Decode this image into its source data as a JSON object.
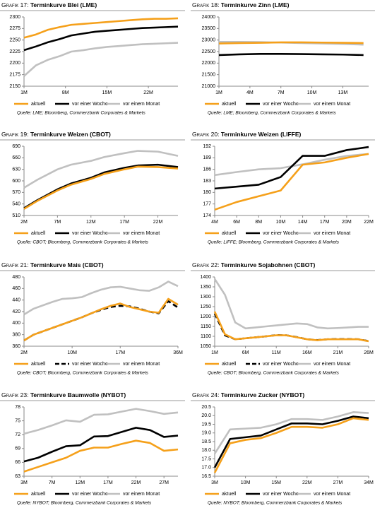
{
  "chart_data": [
    {
      "type": "line",
      "title_prefix": "Grafik 17:",
      "title": "Terminkurve Blei (LME)",
      "x": [
        1,
        3,
        5,
        7,
        9,
        11,
        13,
        15,
        17,
        19,
        21,
        23,
        25,
        27
      ],
      "xlim": [
        1,
        27
      ],
      "xticks": [
        {
          "value": 1,
          "label": "1M"
        },
        {
          "value": 8,
          "label": "8M"
        },
        {
          "value": 15,
          "label": "15M"
        },
        {
          "value": 22,
          "label": "22M"
        }
      ],
      "ylim": [
        2150,
        2300
      ],
      "yticks": [
        2150,
        2175,
        2200,
        2225,
        2250,
        2275,
        2300
      ],
      "series": [
        {
          "name": "aktuell",
          "color": "#f5a01a",
          "values": [
            2255,
            2262,
            2272,
            2278,
            2283,
            2285,
            2287,
            2289,
            2291,
            2293,
            2295,
            2296,
            2296,
            2297
          ]
        },
        {
          "name": "vor einer Woche",
          "color": "#000000",
          "values": [
            2228,
            2236,
            2245,
            2252,
            2260,
            2264,
            2268,
            2270,
            2272,
            2274,
            2276,
            2277,
            2278,
            2279
          ]
        },
        {
          "name": "vor einem Monat",
          "color": "#c0c0c0",
          "values": [
            2172,
            2195,
            2207,
            2215,
            2225,
            2228,
            2232,
            2235,
            2237,
            2239,
            2241,
            2242,
            2243,
            2244
          ]
        }
      ],
      "source": "Quelle: LME; Bloomberg, Commerzbank Corporates & Markets"
    },
    {
      "type": "line",
      "title_prefix": "Grafik 18:",
      "title": "Terminkurve Zinn (LME)",
      "x": [
        1,
        3,
        5,
        7,
        9,
        11,
        13,
        15
      ],
      "xlim": [
        1,
        15.5
      ],
      "xticks": [
        {
          "value": 1,
          "label": "1M"
        },
        {
          "value": 4,
          "label": "4M"
        },
        {
          "value": 7,
          "label": "7M"
        },
        {
          "value": 10,
          "label": "10M"
        },
        {
          "value": 13,
          "label": "13M"
        }
      ],
      "ylim": [
        21000,
        24000
      ],
      "yticks": [
        21000,
        21500,
        22000,
        22500,
        23000,
        23500,
        24000
      ],
      "series": [
        {
          "name": "aktuell",
          "color": "#f5a01a",
          "values": [
            22850,
            22870,
            22880,
            22900,
            22900,
            22890,
            22880,
            22870
          ]
        },
        {
          "name": "vor einer Woche",
          "color": "#000000",
          "values": [
            22350,
            22380,
            22400,
            22400,
            22390,
            22380,
            22370,
            22350
          ]
        },
        {
          "name": "vor einem Monat",
          "color": "#c0c0c0",
          "values": [
            22920,
            22920,
            22910,
            22890,
            22870,
            22850,
            22830,
            22800
          ]
        }
      ],
      "source": "Quelle: LME; Bloomberg, Commerzbank Corporates & Markets"
    },
    {
      "type": "line",
      "title_prefix": "Grafik 19:",
      "title": "Terminkurve Weizen (CBOT)",
      "x": [
        2,
        4,
        7,
        9,
        12,
        14,
        17,
        19,
        22,
        25
      ],
      "xlim": [
        2,
        25
      ],
      "xticks": [
        {
          "value": 2,
          "label": "2M"
        },
        {
          "value": 7,
          "label": "7M"
        },
        {
          "value": 12,
          "label": "12M"
        },
        {
          "value": 17,
          "label": "17M"
        },
        {
          "value": 22,
          "label": "22M"
        }
      ],
      "ylim": [
        510,
        690
      ],
      "yticks": [
        510,
        540,
        570,
        600,
        630,
        660,
        690
      ],
      "series": [
        {
          "name": "aktuell",
          "color": "#f5a01a",
          "values": [
            527,
            548,
            575,
            590,
            605,
            618,
            630,
            637,
            636,
            632
          ]
        },
        {
          "name": "vor einer Woche",
          "color": "#000000",
          "values": [
            529,
            550,
            578,
            593,
            608,
            622,
            634,
            640,
            642,
            636
          ]
        },
        {
          "name": "vor einem Monat",
          "color": "#c0c0c0",
          "values": [
            582,
            603,
            630,
            642,
            652,
            662,
            672,
            678,
            676,
            665
          ]
        }
      ],
      "source": "Quelle: CBOT; Bloomberg, Commerzbank Corporates & Markets"
    },
    {
      "type": "line",
      "title_prefix": "Grafik 20:",
      "title": "Terminkurve Weizen (LIFFE)",
      "categories": [
        "4M",
        "6M",
        "8M",
        "10M",
        "14M",
        "17M",
        "20M",
        "22M"
      ],
      "ylim": [
        174,
        192
      ],
      "yticks": [
        174,
        177,
        180,
        183,
        186,
        189,
        192
      ],
      "series": [
        {
          "name": "aktuell",
          "color": "#f5a01a",
          "values": [
            175.5,
            177.5,
            179,
            180.5,
            187.2,
            187.8,
            189,
            190
          ]
        },
        {
          "name": "vor einer Woche",
          "color": "#000000",
          "values": [
            181,
            181.5,
            182,
            184,
            189.5,
            189.5,
            191,
            191.8
          ]
        },
        {
          "name": "vor einem Monat",
          "color": "#c0c0c0",
          "values": [
            184.5,
            185.3,
            186,
            186.3,
            187.3,
            188.5,
            189.5,
            190
          ]
        }
      ],
      "source": "Quelle: LIFFE; Bloomberg, Commerzbank Corporates & Markets"
    },
    {
      "type": "line",
      "title_prefix": "Grafik 21:",
      "title": "Terminkurve Mais (CBOT)",
      "categories": [
        "2M",
        null,
        null,
        null,
        null,
        "10M",
        null,
        null,
        null,
        null,
        "17M",
        null,
        null,
        null,
        null,
        null,
        "36M"
      ],
      "ylim": [
        360,
        480
      ],
      "yticks": [
        360,
        380,
        400,
        420,
        440,
        460,
        480
      ],
      "series": [
        {
          "name": "aktuell",
          "color": "#f5a01a",
          "values": [
            370,
            380,
            386,
            392,
            398,
            404,
            410,
            417,
            424,
            430,
            434,
            428,
            424,
            420,
            418,
            442,
            432
          ]
        },
        {
          "name": "vor einer Woche",
          "color": "#000000",
          "dash": true,
          "values": [
            370,
            380,
            386,
            392,
            398,
            404,
            410,
            417,
            423,
            428,
            430,
            429,
            425,
            420,
            417,
            438,
            427
          ]
        },
        {
          "name": "vor einem Monat",
          "color": "#c0c0c0",
          "values": [
            415,
            425,
            431,
            437,
            442,
            443,
            445,
            452,
            458,
            462,
            463,
            460,
            457,
            456,
            462,
            472,
            464
          ]
        }
      ],
      "source": "Quelle: CBOT; Bloomberg, Commerzbank Corporates & Markets"
    },
    {
      "type": "line",
      "title_prefix": "Grafik 22:",
      "title": "Terminkurve Sojabohnen (CBOT)",
      "categories": [
        "1M",
        null,
        null,
        "6M",
        null,
        null,
        "11M",
        null,
        null,
        "16M",
        null,
        null,
        "21M",
        null,
        null,
        "26M"
      ],
      "ylim": [
        1050,
        1400
      ],
      "yticks": [
        1050,
        1100,
        1150,
        1200,
        1250,
        1300,
        1350,
        1400
      ],
      "series": [
        {
          "name": "aktuell",
          "color": "#f5a01a",
          "values": [
            1225,
            1110,
            1085,
            1090,
            1095,
            1100,
            1105,
            1105,
            1095,
            1085,
            1080,
            1085,
            1085,
            1085,
            1085,
            1075
          ]
        },
        {
          "name": "vor einer Woche",
          "color": "#000000",
          "dash": true,
          "values": [
            1215,
            1105,
            1085,
            1090,
            1095,
            1100,
            1106,
            1105,
            1096,
            1085,
            1081,
            1085,
            1086,
            1086,
            1085,
            1076
          ]
        },
        {
          "name": "vor einem Monat",
          "color": "#c0c0c0",
          "values": [
            1390,
            1310,
            1170,
            1140,
            1145,
            1150,
            1155,
            1160,
            1165,
            1162,
            1145,
            1140,
            1142,
            1145,
            1148,
            1148
          ]
        }
      ],
      "source": "Quelle: CBOT; Bloomberg, Commerzbank Corporates & Markets"
    },
    {
      "type": "line",
      "title_prefix": "Grafik 23:",
      "title": "Terminkurve Baumwolle (NYBOT)",
      "categories": [
        "3M",
        null,
        "7M",
        null,
        "12M",
        null,
        "17M",
        null,
        "22M",
        null,
        "27M",
        null
      ],
      "ylim": [
        63,
        78
      ],
      "yticks": [
        63,
        66,
        69,
        72,
        75,
        78
      ],
      "series": [
        {
          "name": "aktuell",
          "color": "#f5a01a",
          "values": [
            64,
            65,
            66,
            67,
            68.5,
            69.2,
            69.2,
            70,
            70.7,
            70.2,
            68.5,
            68.8
          ]
        },
        {
          "name": "vor einer Woche",
          "color": "#000000",
          "values": [
            66.2,
            67,
            68.3,
            69.5,
            69.7,
            71.6,
            71.7,
            72.6,
            73.5,
            73,
            71.5,
            71.8
          ]
        },
        {
          "name": "vor einem Monat",
          "color": "#c0c0c0",
          "values": [
            72.2,
            73,
            74,
            75.1,
            74.8,
            76.3,
            76.4,
            77,
            77.6,
            77.1,
            76.5,
            76.8
          ]
        }
      ],
      "source": "Quelle: NYBOT; Bloomberg, Commerzbank Corporates & Markets"
    },
    {
      "type": "line",
      "title_prefix": "Grafik 24:",
      "title": "Terminkurve Zucker (NYBOT)",
      "categories": [
        "3M",
        null,
        "10M",
        null,
        "15M",
        null,
        "22M",
        null,
        "27M",
        null,
        "34M"
      ],
      "ylim": [
        16.5,
        20.5
      ],
      "yticks": [
        16.5,
        {
          "value": 17,
          "label": "17.0"
        },
        17.5,
        {
          "value": 18,
          "label": "18.0"
        },
        18.5,
        {
          "value": 19,
          "label": "19.0"
        },
        19.5,
        {
          "value": 20,
          "label": "20.0"
        },
        20.5
      ],
      "series": [
        {
          "name": "aktuell",
          "color": "#f5a01a",
          "values": [
            16.7,
            18.4,
            18.6,
            18.7,
            19.0,
            19.35,
            19.35,
            19.3,
            19.5,
            19.85,
            19.75
          ]
        },
        {
          "name": "vor einer Woche",
          "color": "#000000",
          "values": [
            17.0,
            18.65,
            18.75,
            18.85,
            19.2,
            19.55,
            19.55,
            19.5,
            19.7,
            19.95,
            19.85
          ]
        },
        {
          "name": "vor einem Monat",
          "color": "#c0c0c0",
          "values": [
            17.8,
            19.2,
            19.25,
            19.3,
            19.5,
            19.8,
            19.8,
            19.75,
            19.95,
            20.2,
            20.15
          ]
        }
      ],
      "source": "Quelle: NYBOT; Bloomberg, Commerzbank Corporates & Markets"
    }
  ]
}
